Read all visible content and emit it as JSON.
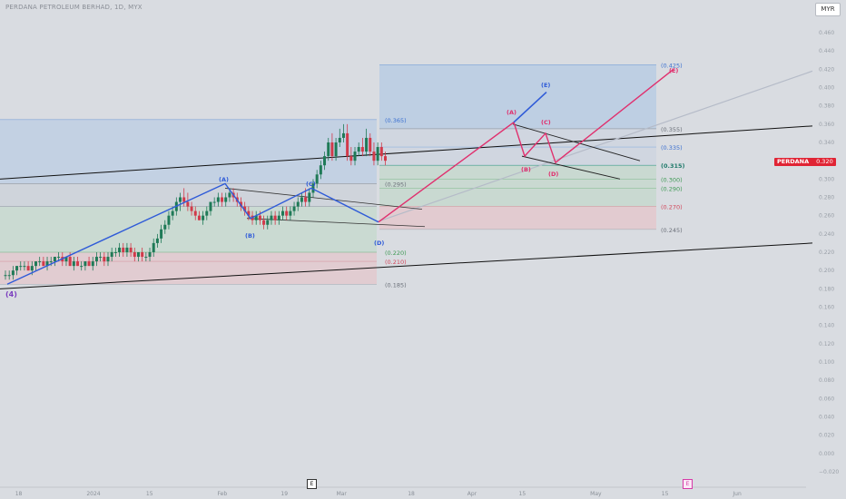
{
  "header": {
    "title": "PERDANA PETROLEUM BERHAD, 1D, MYX",
    "currency_button": "MYR",
    "ticker_symbol": "PERDANA",
    "ticker_price": "0.320"
  },
  "event_markers": [
    {
      "label": "E",
      "x_index": 72
    },
    {
      "label": "E",
      "x_index": 160
    }
  ],
  "colors": {
    "up": "#1f7a57",
    "down": "#d13a4a",
    "wave_blue": "#2f5bd8",
    "wave_pink": "#e0306e",
    "fib_blue": "#a8c4e6",
    "fib_green": "#bcd7c4",
    "fib_red": "#e8c0c4"
  },
  "chart_data": {
    "type": "candlestick",
    "title": "PERDANA PETROLEUM BERHAD, 1D, MYX",
    "y_axis": {
      "min": -0.02,
      "max": 0.46,
      "ticks": [
        "0.460",
        "0.440",
        "0.420",
        "0.400",
        "0.380",
        "0.360",
        "0.340",
        "0.320",
        "0.300",
        "0.280",
        "0.260",
        "0.240",
        "0.220",
        "0.200",
        "0.180",
        "0.160",
        "0.140",
        "0.120",
        "0.100",
        "0.080",
        "0.060",
        "0.040",
        "0.020",
        "0.000",
        "−0.020"
      ]
    },
    "x_axis": {
      "domain": [
        0,
        190
      ],
      "ticks": [
        {
          "label": "18",
          "x": 2
        },
        {
          "label": "2024",
          "x": 20
        },
        {
          "label": "15",
          "x": 35
        },
        {
          "label": "Feb",
          "x": 53
        },
        {
          "label": "19",
          "x": 69
        },
        {
          "label": "Mar",
          "x": 83
        },
        {
          "label": "18",
          "x": 101
        },
        {
          "label": "Apr",
          "x": 116
        },
        {
          "label": "15",
          "x": 129
        },
        {
          "label": "May",
          "x": 147
        },
        {
          "label": "15",
          "x": 165
        },
        {
          "label": "Jun",
          "x": 183
        }
      ]
    },
    "candles": [
      {
        "o": 0.195,
        "h": 0.2,
        "l": 0.19,
        "c": 0.195
      },
      {
        "o": 0.195,
        "h": 0.2,
        "l": 0.19,
        "c": 0.195
      },
      {
        "o": 0.195,
        "h": 0.205,
        "l": 0.19,
        "c": 0.2
      },
      {
        "o": 0.2,
        "h": 0.205,
        "l": 0.195,
        "c": 0.205
      },
      {
        "o": 0.205,
        "h": 0.21,
        "l": 0.2,
        "c": 0.205
      },
      {
        "o": 0.205,
        "h": 0.21,
        "l": 0.2,
        "c": 0.205
      },
      {
        "o": 0.205,
        "h": 0.21,
        "l": 0.2,
        "c": 0.2
      },
      {
        "o": 0.2,
        "h": 0.21,
        "l": 0.195,
        "c": 0.205
      },
      {
        "o": 0.205,
        "h": 0.21,
        "l": 0.2,
        "c": 0.21
      },
      {
        "o": 0.21,
        "h": 0.215,
        "l": 0.205,
        "c": 0.21
      },
      {
        "o": 0.21,
        "h": 0.215,
        "l": 0.205,
        "c": 0.205
      },
      {
        "o": 0.205,
        "h": 0.215,
        "l": 0.2,
        "c": 0.21
      },
      {
        "o": 0.21,
        "h": 0.215,
        "l": 0.205,
        "c": 0.21
      },
      {
        "o": 0.21,
        "h": 0.215,
        "l": 0.205,
        "c": 0.215
      },
      {
        "o": 0.215,
        "h": 0.22,
        "l": 0.21,
        "c": 0.215
      },
      {
        "o": 0.215,
        "h": 0.22,
        "l": 0.205,
        "c": 0.21
      },
      {
        "o": 0.21,
        "h": 0.215,
        "l": 0.205,
        "c": 0.215
      },
      {
        "o": 0.215,
        "h": 0.22,
        "l": 0.205,
        "c": 0.205
      },
      {
        "o": 0.205,
        "h": 0.215,
        "l": 0.2,
        "c": 0.21
      },
      {
        "o": 0.21,
        "h": 0.215,
        "l": 0.205,
        "c": 0.205
      },
      {
        "o": 0.205,
        "h": 0.21,
        "l": 0.2,
        "c": 0.205
      },
      {
        "o": 0.205,
        "h": 0.21,
        "l": 0.2,
        "c": 0.21
      },
      {
        "o": 0.21,
        "h": 0.215,
        "l": 0.205,
        "c": 0.205
      },
      {
        "o": 0.205,
        "h": 0.215,
        "l": 0.2,
        "c": 0.21
      },
      {
        "o": 0.21,
        "h": 0.22,
        "l": 0.205,
        "c": 0.215
      },
      {
        "o": 0.215,
        "h": 0.22,
        "l": 0.21,
        "c": 0.215
      },
      {
        "o": 0.215,
        "h": 0.22,
        "l": 0.205,
        "c": 0.21
      },
      {
        "o": 0.21,
        "h": 0.22,
        "l": 0.205,
        "c": 0.215
      },
      {
        "o": 0.215,
        "h": 0.225,
        "l": 0.21,
        "c": 0.22
      },
      {
        "o": 0.22,
        "h": 0.225,
        "l": 0.215,
        "c": 0.22
      },
      {
        "o": 0.22,
        "h": 0.23,
        "l": 0.215,
        "c": 0.225
      },
      {
        "o": 0.225,
        "h": 0.23,
        "l": 0.215,
        "c": 0.22
      },
      {
        "o": 0.22,
        "h": 0.23,
        "l": 0.215,
        "c": 0.225
      },
      {
        "o": 0.225,
        "h": 0.23,
        "l": 0.215,
        "c": 0.22
      },
      {
        "o": 0.22,
        "h": 0.225,
        "l": 0.21,
        "c": 0.215
      },
      {
        "o": 0.215,
        "h": 0.22,
        "l": 0.21,
        "c": 0.22
      },
      {
        "o": 0.22,
        "h": 0.225,
        "l": 0.21,
        "c": 0.215
      },
      {
        "o": 0.215,
        "h": 0.22,
        "l": 0.21,
        "c": 0.215
      },
      {
        "o": 0.215,
        "h": 0.225,
        "l": 0.21,
        "c": 0.22
      },
      {
        "o": 0.22,
        "h": 0.235,
        "l": 0.215,
        "c": 0.23
      },
      {
        "o": 0.23,
        "h": 0.24,
        "l": 0.225,
        "c": 0.235
      },
      {
        "o": 0.235,
        "h": 0.25,
        "l": 0.23,
        "c": 0.245
      },
      {
        "o": 0.245,
        "h": 0.255,
        "l": 0.24,
        "c": 0.25
      },
      {
        "o": 0.25,
        "h": 0.265,
        "l": 0.245,
        "c": 0.26
      },
      {
        "o": 0.26,
        "h": 0.27,
        "l": 0.255,
        "c": 0.265
      },
      {
        "o": 0.265,
        "h": 0.28,
        "l": 0.26,
        "c": 0.275
      },
      {
        "o": 0.275,
        "h": 0.285,
        "l": 0.265,
        "c": 0.28
      },
      {
        "o": 0.28,
        "h": 0.29,
        "l": 0.27,
        "c": 0.275
      },
      {
        "o": 0.275,
        "h": 0.285,
        "l": 0.265,
        "c": 0.27
      },
      {
        "o": 0.27,
        "h": 0.275,
        "l": 0.26,
        "c": 0.265
      },
      {
        "o": 0.265,
        "h": 0.27,
        "l": 0.255,
        "c": 0.26
      },
      {
        "o": 0.26,
        "h": 0.265,
        "l": 0.255,
        "c": 0.255
      },
      {
        "o": 0.255,
        "h": 0.265,
        "l": 0.25,
        "c": 0.26
      },
      {
        "o": 0.26,
        "h": 0.27,
        "l": 0.255,
        "c": 0.265
      },
      {
        "o": 0.265,
        "h": 0.275,
        "l": 0.26,
        "c": 0.275
      },
      {
        "o": 0.275,
        "h": 0.28,
        "l": 0.27,
        "c": 0.275
      },
      {
        "o": 0.275,
        "h": 0.285,
        "l": 0.27,
        "c": 0.28
      },
      {
        "o": 0.28,
        "h": 0.285,
        "l": 0.27,
        "c": 0.275
      },
      {
        "o": 0.275,
        "h": 0.285,
        "l": 0.27,
        "c": 0.28
      },
      {
        "o": 0.28,
        "h": 0.29,
        "l": 0.275,
        "c": 0.285
      },
      {
        "o": 0.285,
        "h": 0.29,
        "l": 0.275,
        "c": 0.28
      },
      {
        "o": 0.28,
        "h": 0.285,
        "l": 0.27,
        "c": 0.275
      },
      {
        "o": 0.275,
        "h": 0.28,
        "l": 0.265,
        "c": 0.27
      },
      {
        "o": 0.27,
        "h": 0.275,
        "l": 0.26,
        "c": 0.265
      },
      {
        "o": 0.265,
        "h": 0.27,
        "l": 0.255,
        "c": 0.26
      },
      {
        "o": 0.26,
        "h": 0.265,
        "l": 0.25,
        "c": 0.255
      },
      {
        "o": 0.255,
        "h": 0.265,
        "l": 0.25,
        "c": 0.26
      },
      {
        "o": 0.26,
        "h": 0.265,
        "l": 0.25,
        "c": 0.255
      },
      {
        "o": 0.255,
        "h": 0.26,
        "l": 0.245,
        "c": 0.25
      },
      {
        "o": 0.25,
        "h": 0.26,
        "l": 0.245,
        "c": 0.255
      },
      {
        "o": 0.255,
        "h": 0.265,
        "l": 0.25,
        "c": 0.26
      },
      {
        "o": 0.26,
        "h": 0.265,
        "l": 0.25,
        "c": 0.255
      },
      {
        "o": 0.255,
        "h": 0.265,
        "l": 0.25,
        "c": 0.26
      },
      {
        "o": 0.26,
        "h": 0.27,
        "l": 0.255,
        "c": 0.265
      },
      {
        "o": 0.265,
        "h": 0.27,
        "l": 0.255,
        "c": 0.26
      },
      {
        "o": 0.26,
        "h": 0.27,
        "l": 0.255,
        "c": 0.265
      },
      {
        "o": 0.265,
        "h": 0.275,
        "l": 0.26,
        "c": 0.27
      },
      {
        "o": 0.27,
        "h": 0.28,
        "l": 0.265,
        "c": 0.275
      },
      {
        "o": 0.275,
        "h": 0.285,
        "l": 0.27,
        "c": 0.28
      },
      {
        "o": 0.28,
        "h": 0.29,
        "l": 0.27,
        "c": 0.275
      },
      {
        "o": 0.275,
        "h": 0.29,
        "l": 0.27,
        "c": 0.285
      },
      {
        "o": 0.285,
        "h": 0.3,
        "l": 0.28,
        "c": 0.295
      },
      {
        "o": 0.295,
        "h": 0.31,
        "l": 0.29,
        "c": 0.305
      },
      {
        "o": 0.305,
        "h": 0.32,
        "l": 0.3,
        "c": 0.315
      },
      {
        "o": 0.315,
        "h": 0.33,
        "l": 0.31,
        "c": 0.325
      },
      {
        "o": 0.325,
        "h": 0.345,
        "l": 0.32,
        "c": 0.34
      },
      {
        "o": 0.34,
        "h": 0.35,
        "l": 0.32,
        "c": 0.325
      },
      {
        "o": 0.325,
        "h": 0.345,
        "l": 0.32,
        "c": 0.34
      },
      {
        "o": 0.34,
        "h": 0.355,
        "l": 0.335,
        "c": 0.345
      },
      {
        "o": 0.345,
        "h": 0.36,
        "l": 0.34,
        "c": 0.35
      },
      {
        "o": 0.35,
        "h": 0.36,
        "l": 0.32,
        "c": 0.325
      },
      {
        "o": 0.325,
        "h": 0.335,
        "l": 0.315,
        "c": 0.32
      },
      {
        "o": 0.32,
        "h": 0.335,
        "l": 0.315,
        "c": 0.33
      },
      {
        "o": 0.33,
        "h": 0.34,
        "l": 0.325,
        "c": 0.335
      },
      {
        "o": 0.335,
        "h": 0.345,
        "l": 0.325,
        "c": 0.33
      },
      {
        "o": 0.33,
        "h": 0.355,
        "l": 0.325,
        "c": 0.345
      },
      {
        "o": 0.345,
        "h": 0.35,
        "l": 0.325,
        "c": 0.33
      },
      {
        "o": 0.33,
        "h": 0.34,
        "l": 0.315,
        "c": 0.32
      },
      {
        "o": 0.32,
        "h": 0.34,
        "l": 0.315,
        "c": 0.335
      },
      {
        "o": 0.335,
        "h": 0.34,
        "l": 0.32,
        "c": 0.325
      },
      {
        "o": 0.325,
        "h": 0.33,
        "l": 0.315,
        "c": 0.32
      }
    ],
    "candle_x": [
      0,
      2,
      4,
      6,
      8,
      10,
      12,
      14,
      16,
      18,
      20,
      22,
      24,
      26,
      28,
      30,
      32,
      34,
      36,
      38,
      40,
      42,
      44,
      46,
      48,
      50,
      52,
      54,
      56,
      58,
      60,
      62,
      64,
      66,
      68,
      70,
      72,
      74,
      76,
      78,
      80,
      82,
      84,
      86,
      88,
      90,
      92,
      94,
      96,
      98,
      100,
      102,
      104,
      106,
      108,
      110,
      112,
      114,
      116,
      118,
      120,
      122,
      124,
      126,
      128,
      130,
      132,
      134,
      136,
      138,
      140,
      142,
      144,
      146,
      148,
      150,
      152,
      154,
      156,
      158,
      160,
      162,
      164,
      166,
      168,
      170,
      172,
      174,
      176,
      178,
      180,
      182,
      184,
      186,
      188,
      190,
      192,
      194,
      196,
      198,
      200
    ],
    "wave_labels": [
      {
        "text": "(4)",
        "color": "purple"
      },
      {
        "text": "(A)",
        "color": "blue"
      },
      {
        "text": "(B)",
        "color": "blue"
      },
      {
        "text": "(C)",
        "color": "blue"
      },
      {
        "text": "(D)",
        "color": "blue"
      },
      {
        "text": "(A)",
        "color": "pink"
      },
      {
        "text": "(B)",
        "color": "pink"
      },
      {
        "text": "(C)",
        "color": "pink"
      },
      {
        "text": "(D)",
        "color": "pink"
      },
      {
        "text": "(E)",
        "color": "blue"
      },
      {
        "text": "(E)",
        "color": "pink"
      }
    ],
    "fib_labels_left": [
      {
        "text": "(0.295)",
        "value": 0.295,
        "color": "gray"
      },
      {
        "text": "(0.220)",
        "value": 0.22,
        "color": "green"
      },
      {
        "text": "(0.210)",
        "value": 0.21,
        "color": "red"
      },
      {
        "text": "(0.185)",
        "value": 0.185,
        "color": "gray"
      }
    ],
    "fib_labels_mid": [
      {
        "text": "(0.365)",
        "value": 0.365,
        "color": "blue"
      },
      {
        "text": "(0.425)",
        "value": 0.425,
        "color": "blue"
      },
      {
        "text": "(0.355)",
        "value": 0.355,
        "color": "gray"
      },
      {
        "text": "(0.335)",
        "value": 0.335,
        "color": "blue"
      },
      {
        "text": "(0.315)",
        "value": 0.315,
        "color": "teal"
      },
      {
        "text": "(0.300)",
        "value": 0.3,
        "color": "green"
      },
      {
        "text": "(0.290)",
        "value": 0.29,
        "color": "green"
      },
      {
        "text": "(0.270)",
        "value": 0.27,
        "color": "red"
      },
      {
        "text": "(0.245)",
        "value": 0.245,
        "color": "gray"
      }
    ],
    "grid": false,
    "legend": "none"
  }
}
